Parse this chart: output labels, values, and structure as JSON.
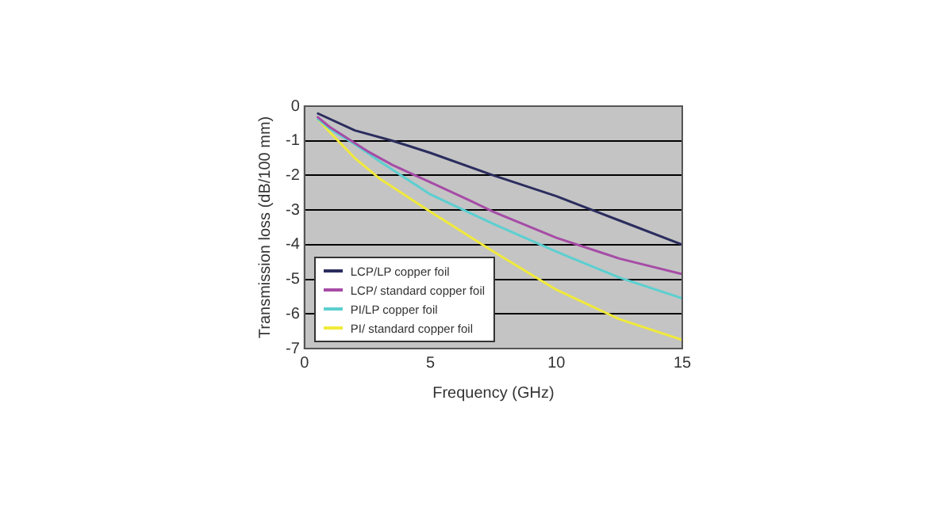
{
  "chart_data": {
    "type": "line",
    "xlabel": "Frequency (GHz)",
    "ylabel": "Transmission loss (dB/100 mm)",
    "xlim": [
      0,
      15
    ],
    "xticks": [
      0,
      5,
      10,
      15
    ],
    "ylim": [
      -7,
      0
    ],
    "yticks": [
      0,
      -1,
      -2,
      -3,
      -4,
      -5,
      -6,
      -7
    ],
    "grid": "y",
    "legend": "bottom left",
    "marker": "none",
    "line_style": "solid",
    "series": [
      {
        "name": "LCP/LP copper foil",
        "color": "#2b2d5e",
        "x": [
          0.5,
          2,
          3.5,
          5,
          7.5,
          10,
          12.5,
          15
        ],
        "values": [
          -0.2,
          -0.7,
          -1.0,
          -1.35,
          -2.0,
          -2.6,
          -3.3,
          -4.0
        ]
      },
      {
        "name": "LCP/ standard copper foil",
        "color": "#a64ca6",
        "x": [
          0.5,
          1,
          2.5,
          3.5,
          5,
          6.5,
          7.5,
          10,
          12.5,
          15
        ],
        "values": [
          -0.3,
          -0.6,
          -1.3,
          -1.7,
          -2.2,
          -2.7,
          -3.05,
          -3.8,
          -4.4,
          -4.85
        ]
      },
      {
        "name": "PI/LP copper foil",
        "color": "#5ccfd0",
        "x": [
          0.5,
          1,
          2,
          3,
          5,
          7.5,
          10,
          12.5,
          15
        ],
        "values": [
          -0.35,
          -0.65,
          -1.1,
          -1.6,
          -2.55,
          -3.4,
          -4.2,
          -4.95,
          -5.55
        ]
      },
      {
        "name": "PI/ standard copper foil",
        "color": "#f0ea3a",
        "x": [
          0.5,
          1,
          2,
          3,
          5,
          7.5,
          10,
          12.5,
          15
        ],
        "values": [
          -0.35,
          -0.75,
          -1.5,
          -2.1,
          -3.05,
          -4.2,
          -5.3,
          -6.15,
          -6.75
        ]
      }
    ]
  }
}
